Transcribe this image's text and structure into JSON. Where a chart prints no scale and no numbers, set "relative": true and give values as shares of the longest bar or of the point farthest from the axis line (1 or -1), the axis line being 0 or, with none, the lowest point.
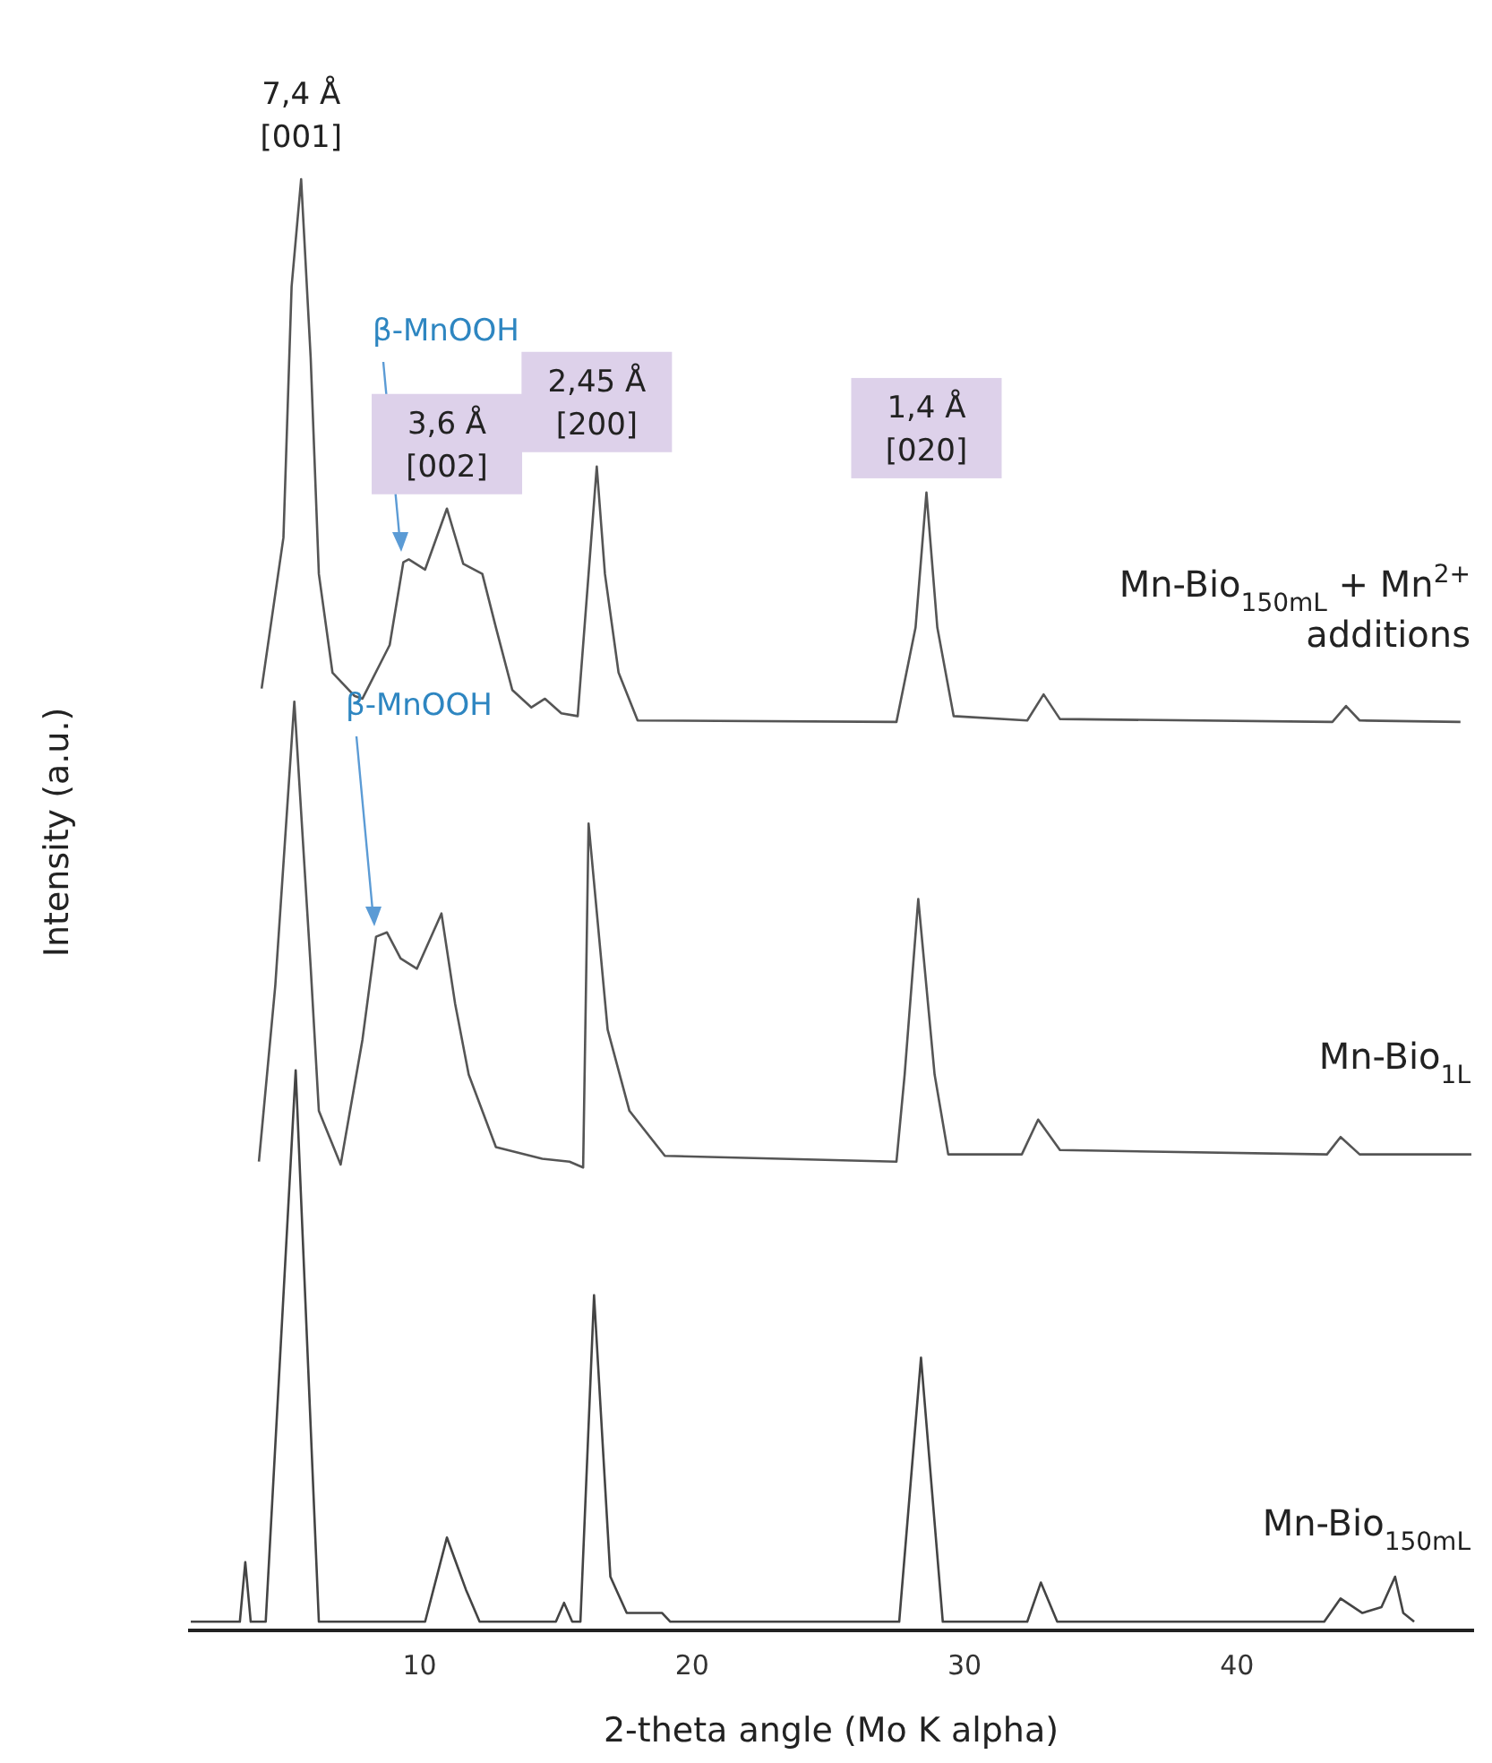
{
  "chart_data": {
    "type": "line",
    "relative": true,
    "xlabel": "2-theta angle (Mo K alpha)",
    "ylabel": "Intensity (a.u.)",
    "xlim": [
      1.5,
      48.7
    ],
    "xticks": [
      10,
      20,
      30,
      40
    ],
    "series": [
      {
        "name": "Mn-Bio$_{150mL}$ + Mn$^{2+}$ additions",
        "color": "#555555",
        "x": [
          4.2,
          5.0,
          5.3,
          5.65,
          6.0,
          6.3,
          6.8,
          7.6,
          7.9,
          8.9,
          9.4,
          9.6,
          10.2,
          11.0,
          11.6,
          12.3,
          12.8,
          13.4,
          14.1,
          14.6,
          15.2,
          15.8,
          16.2,
          16.5,
          16.8,
          17.3,
          18.0,
          27.5,
          28.2,
          28.6,
          29.0,
          29.6,
          32.3,
          32.9,
          33.5,
          43.5,
          44.0,
          44.5,
          48.2
        ],
        "values": [
          0.649,
          0.753,
          0.926,
          1.0,
          0.877,
          0.728,
          0.66,
          0.644,
          0.642,
          0.679,
          0.736,
          0.738,
          0.731,
          0.773,
          0.735,
          0.728,
          0.691,
          0.648,
          0.636,
          0.642,
          0.632,
          0.63,
          0.728,
          0.802,
          0.728,
          0.66,
          0.627,
          0.626,
          0.691,
          0.784,
          0.691,
          0.63,
          0.627,
          0.645,
          0.628,
          0.626,
          0.637,
          0.627,
          0.626
        ]
      },
      {
        "name": "Mn-Bio$_{1L}$",
        "color": "#555555",
        "x": [
          4.1,
          4.7,
          5.4,
          6.0,
          6.3,
          7.1,
          7.9,
          8.4,
          8.8,
          9.3,
          9.9,
          10.8,
          11.3,
          11.8,
          12.8,
          14.5,
          15.5,
          16.0,
          16.2,
          16.9,
          17.7,
          19.0,
          27.5,
          27.8,
          28.3,
          28.9,
          29.4,
          32.1,
          32.7,
          33.5,
          43.3,
          43.8,
          44.5,
          48.6
        ],
        "values": [
          0.323,
          0.444,
          0.64,
          0.457,
          0.358,
          0.321,
          0.407,
          0.478,
          0.481,
          0.463,
          0.456,
          0.494,
          0.432,
          0.383,
          0.333,
          0.325,
          0.323,
          0.319,
          0.556,
          0.414,
          0.358,
          0.327,
          0.323,
          0.383,
          0.504,
          0.383,
          0.328,
          0.328,
          0.352,
          0.331,
          0.328,
          0.34,
          0.328,
          0.328
        ]
      },
      {
        "name": "Mn-Bio$_{150mL}$",
        "color": "#444444",
        "x": [
          1.6,
          3.4,
          3.6,
          3.8,
          4.35,
          5.45,
          6.3,
          10.2,
          11.0,
          11.7,
          12.2,
          15.0,
          15.3,
          15.6,
          15.9,
          16.4,
          17.0,
          17.6,
          18.9,
          19.2,
          27.6,
          28.4,
          29.2,
          32.3,
          32.8,
          33.4,
          43.2,
          43.8,
          44.6,
          45.3,
          45.8,
          46.1,
          46.5
        ],
        "values": [
          0.006,
          0.006,
          0.047,
          0.006,
          0.006,
          0.386,
          0.006,
          0.006,
          0.064,
          0.028,
          0.006,
          0.006,
          0.019,
          0.006,
          0.006,
          0.231,
          0.037,
          0.012,
          0.012,
          0.006,
          0.006,
          0.188,
          0.006,
          0.006,
          0.033,
          0.006,
          0.006,
          0.022,
          0.012,
          0.016,
          0.037,
          0.012,
          0.006
        ]
      }
    ],
    "annotations": [
      {
        "text": "7,4 Å\n[001]",
        "x": 5.65,
        "y": 1.0
      },
      "β-MnOOH",
      {
        "text": "3,6 Å\n[002]",
        "x": 11.0,
        "y": 0.773
      },
      {
        "text": "2,45 Å\n[200]",
        "x": 16.5,
        "y": 0.802
      },
      {
        "text": "1,4 Å\n[020]",
        "x": 28.6,
        "y": 0.784
      },
      "β-MnOOH"
    ]
  }
}
